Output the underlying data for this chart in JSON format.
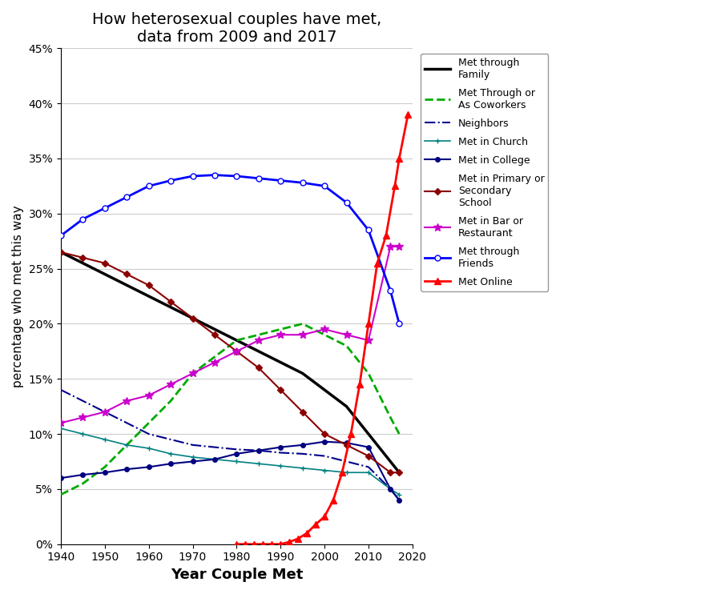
{
  "title": "How heterosexual couples have met,\ndata from 2009 and 2017",
  "xlabel": "Year Couple Met",
  "ylabel": "percentage who met this way",
  "xlim": [
    1940,
    2020
  ],
  "ylim": [
    0,
    0.45
  ],
  "yticks": [
    0.0,
    0.05,
    0.1,
    0.15,
    0.2,
    0.25,
    0.3,
    0.35,
    0.4,
    0.45
  ],
  "xticks": [
    1940,
    1950,
    1960,
    1970,
    1980,
    1990,
    2000,
    2010,
    2020
  ],
  "met_online": {
    "x": [
      1980,
      1982,
      1984,
      1986,
      1988,
      1990,
      1992,
      1994,
      1996,
      1998,
      2000,
      2002,
      2004,
      2006,
      2008,
      2010,
      2012,
      2014,
      2016,
      2017,
      2019
    ],
    "y": [
      0.0,
      0.0,
      0.0,
      0.0,
      0.0,
      0.0,
      0.002,
      0.005,
      0.01,
      0.018,
      0.025,
      0.04,
      0.065,
      0.1,
      0.145,
      0.2,
      0.255,
      0.28,
      0.325,
      0.35,
      0.39
    ],
    "color": "#FF0000",
    "label": "Met Online",
    "linestyle": "-",
    "marker": "^",
    "marker_null": false,
    "linewidth": 2.0,
    "markersize": 6
  },
  "met_bar": {
    "x": [
      1940,
      1945,
      1950,
      1955,
      1960,
      1965,
      1970,
      1975,
      1980,
      1985,
      1990,
      1995,
      2000,
      2005,
      2010,
      2015,
      2017
    ],
    "y": [
      0.11,
      0.115,
      0.12,
      0.13,
      0.135,
      0.145,
      0.155,
      0.165,
      0.175,
      0.185,
      0.19,
      0.19,
      0.195,
      0.19,
      0.185,
      0.27,
      0.27
    ],
    "color": "#CC00CC",
    "label": "Met in Bar or\nRestaurant",
    "linestyle": "-",
    "marker": "*",
    "marker_null": false,
    "linewidth": 1.5,
    "markersize": 7
  },
  "met_friends": {
    "x": [
      1940,
      1945,
      1950,
      1955,
      1960,
      1965,
      1970,
      1975,
      1980,
      1985,
      1990,
      1995,
      2000,
      2005,
      2010,
      2015,
      2017
    ],
    "y": [
      0.28,
      0.295,
      0.305,
      0.315,
      0.325,
      0.33,
      0.334,
      0.335,
      0.334,
      0.332,
      0.33,
      0.328,
      0.325,
      0.31,
      0.285,
      0.23,
      0.2
    ],
    "color": "#0000FF",
    "label": "Met through\nFriends",
    "linestyle": "-",
    "marker": "o",
    "marker_null": false,
    "markerfacecolor": "white",
    "linewidth": 2.0,
    "markersize": 5
  },
  "met_coworkers": {
    "x": [
      1940,
      1945,
      1950,
      1955,
      1960,
      1965,
      1970,
      1975,
      1980,
      1985,
      1990,
      1995,
      2000,
      2005,
      2010,
      2015,
      2017
    ],
    "y": [
      0.045,
      0.055,
      0.07,
      0.09,
      0.11,
      0.13,
      0.155,
      0.17,
      0.185,
      0.19,
      0.195,
      0.2,
      0.19,
      0.18,
      0.155,
      0.115,
      0.1
    ],
    "color": "#00AA00",
    "label": "Met Through or\nAs Coworkers",
    "linestyle": "--",
    "marker_null": true,
    "linewidth": 2.0,
    "markersize": 0
  },
  "met_family": {
    "x": [
      1940,
      1945,
      1950,
      1955,
      1960,
      1965,
      1970,
      1975,
      1980,
      1985,
      1990,
      1995,
      2000,
      2005,
      2010,
      2015,
      2017
    ],
    "y": [
      0.265,
      0.255,
      0.245,
      0.235,
      0.225,
      0.215,
      0.205,
      0.195,
      0.185,
      0.175,
      0.165,
      0.155,
      0.14,
      0.125,
      0.1,
      0.075,
      0.065
    ],
    "color": "#000000",
    "label": "Met through\nFamily",
    "linestyle": "-",
    "marker_null": true,
    "linewidth": 2.5,
    "markersize": 0
  },
  "met_school": {
    "x": [
      1940,
      1945,
      1950,
      1955,
      1960,
      1965,
      1970,
      1975,
      1980,
      1985,
      1990,
      1995,
      2000,
      2005,
      2010,
      2015,
      2017
    ],
    "y": [
      0.265,
      0.26,
      0.255,
      0.245,
      0.235,
      0.22,
      0.205,
      0.19,
      0.175,
      0.16,
      0.14,
      0.12,
      0.1,
      0.09,
      0.08,
      0.065,
      0.065
    ],
    "color": "#8B0000",
    "label": "Met in Primary or\nSecondary\nSchool",
    "linestyle": "-",
    "marker": "D",
    "marker_null": false,
    "markerfacecolor": "#8B0000",
    "linewidth": 1.5,
    "markersize": 4
  },
  "met_college": {
    "x": [
      1940,
      1945,
      1950,
      1955,
      1960,
      1965,
      1970,
      1975,
      1980,
      1985,
      1990,
      1995,
      2000,
      2005,
      2010,
      2015,
      2017
    ],
    "y": [
      0.06,
      0.063,
      0.065,
      0.068,
      0.07,
      0.073,
      0.075,
      0.077,
      0.082,
      0.085,
      0.088,
      0.09,
      0.093,
      0.092,
      0.088,
      0.05,
      0.04
    ],
    "color": "#000080",
    "label": "Met in College",
    "linestyle": "-",
    "marker": "o",
    "marker_null": false,
    "markerfacecolor": "#000080",
    "linewidth": 1.5,
    "markersize": 4
  },
  "neighbors": {
    "x": [
      1940,
      1945,
      1950,
      1955,
      1960,
      1965,
      1970,
      1975,
      1980,
      1985,
      1990,
      1995,
      2000,
      2005,
      2010,
      2015,
      2017
    ],
    "y": [
      0.14,
      0.13,
      0.12,
      0.11,
      0.1,
      0.095,
      0.09,
      0.088,
      0.086,
      0.085,
      0.083,
      0.082,
      0.08,
      0.075,
      0.07,
      0.05,
      0.04
    ],
    "color": "#00008B",
    "label": "Neighbors",
    "linestyle": "-.",
    "marker_null": true,
    "linewidth": 1.5,
    "markersize": 0
  },
  "met_church": {
    "x": [
      1940,
      1945,
      1950,
      1955,
      1960,
      1965,
      1970,
      1975,
      1980,
      1985,
      1990,
      1995,
      2000,
      2005,
      2010,
      2015,
      2017
    ],
    "y": [
      0.105,
      0.1,
      0.095,
      0.09,
      0.087,
      0.082,
      0.079,
      0.077,
      0.075,
      0.073,
      0.071,
      0.069,
      0.067,
      0.065,
      0.065,
      0.05,
      0.045
    ],
    "color": "#008080",
    "label": "Met in Church",
    "linestyle": "-",
    "marker": "+",
    "marker_null": false,
    "linewidth": 1.2,
    "markersize": 5
  }
}
